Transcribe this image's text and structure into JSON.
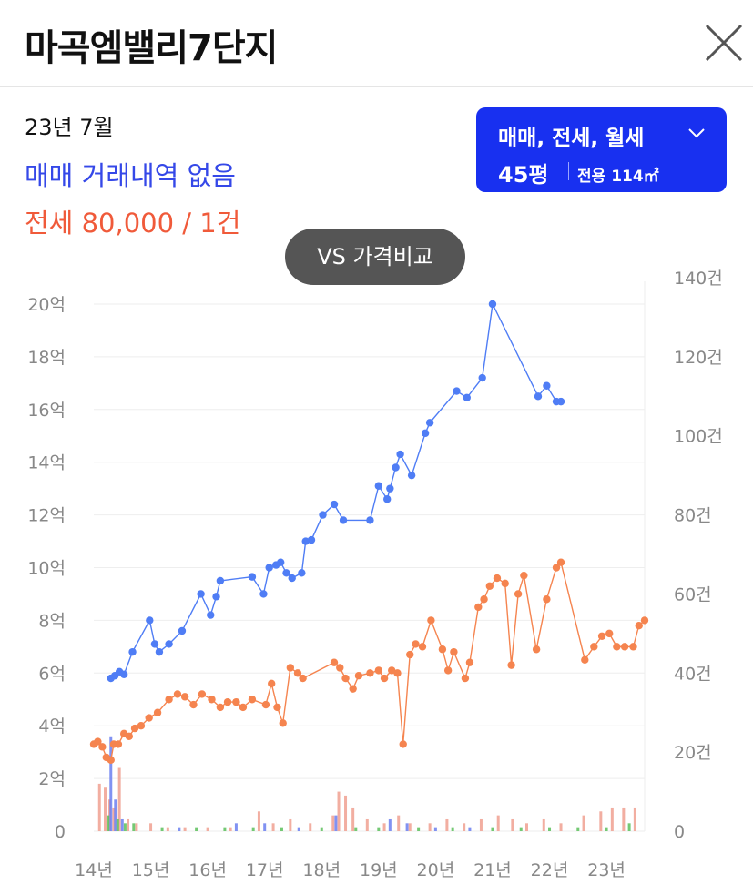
{
  "header": {
    "title": "마곡엠밸리7단지"
  },
  "info": {
    "date": "23년 7월",
    "sale_status": "매매 거래내역 없음",
    "jeonse_status": "전세 80,000 / 1건"
  },
  "filter": {
    "trade_types": "매매, 전세, 월세",
    "size": "45평",
    "area": "전용 114㎡"
  },
  "compare_button": "VS 가격비교",
  "colors": {
    "sale": "#4f7df5",
    "jeonse": "#f5844f",
    "accent": "#1830f0",
    "volume_green": "#5cc05c"
  },
  "chart_data": {
    "type": "line",
    "x_ticks": [
      "14년",
      "15년",
      "16년",
      "17년",
      "18년",
      "19년",
      "20년",
      "21년",
      "22년",
      "23년"
    ],
    "y_left_ticks": [
      "0",
      "2억",
      "4억",
      "6억",
      "8억",
      "10억",
      "12억",
      "14억",
      "16억",
      "18억",
      "20억"
    ],
    "y_right_ticks": [
      "0",
      "20건",
      "40건",
      "60건",
      "80건",
      "100건",
      "120건",
      "140건"
    ],
    "ylim_left": [
      0,
      20
    ],
    "ylim_right": [
      0,
      140
    ],
    "xlim": [
      2014.0,
      2023.67
    ],
    "grid": true,
    "series": [
      {
        "color": "#4f7df5",
        "points": [
          [
            2014.3,
            5.8
          ],
          [
            2014.37,
            5.9
          ],
          [
            2014.45,
            6.05
          ],
          [
            2014.53,
            5.95
          ],
          [
            2014.68,
            6.8
          ],
          [
            2014.98,
            8.0
          ],
          [
            2015.07,
            7.1
          ],
          [
            2015.15,
            6.8
          ],
          [
            2015.32,
            7.1
          ],
          [
            2015.55,
            7.6
          ],
          [
            2015.88,
            9.0
          ],
          [
            2016.05,
            8.2
          ],
          [
            2016.15,
            8.9
          ],
          [
            2016.22,
            9.5
          ],
          [
            2016.78,
            9.65
          ],
          [
            2016.98,
            9.0
          ],
          [
            2017.08,
            10.0
          ],
          [
            2017.2,
            10.1
          ],
          [
            2017.28,
            10.2
          ],
          [
            2017.38,
            9.8
          ],
          [
            2017.48,
            9.6
          ],
          [
            2017.65,
            9.8
          ],
          [
            2017.72,
            11.0
          ],
          [
            2017.82,
            11.05
          ],
          [
            2018.02,
            12.0
          ],
          [
            2018.22,
            12.4
          ],
          [
            2018.38,
            11.8
          ],
          [
            2018.85,
            11.8
          ],
          [
            2019.0,
            13.1
          ],
          [
            2019.15,
            12.6
          ],
          [
            2019.2,
            13.0
          ],
          [
            2019.3,
            13.8
          ],
          [
            2019.38,
            14.3
          ],
          [
            2019.58,
            13.5
          ],
          [
            2019.82,
            15.1
          ],
          [
            2019.9,
            15.5
          ],
          [
            2020.37,
            16.7
          ],
          [
            2020.55,
            16.45
          ],
          [
            2020.82,
            17.2
          ],
          [
            2021.0,
            20.0
          ],
          [
            2021.8,
            16.5
          ],
          [
            2021.95,
            16.9
          ],
          [
            2022.12,
            16.3
          ],
          [
            2022.2,
            16.3
          ]
        ]
      },
      {
        "color": "#f5844f",
        "points": [
          [
            2014.0,
            3.3
          ],
          [
            2014.07,
            3.4
          ],
          [
            2014.15,
            3.2
          ],
          [
            2014.22,
            2.8
          ],
          [
            2014.3,
            2.7
          ],
          [
            2014.35,
            3.3
          ],
          [
            2014.43,
            3.3
          ],
          [
            2014.53,
            3.7
          ],
          [
            2014.62,
            3.6
          ],
          [
            2014.72,
            3.9
          ],
          [
            2014.83,
            4.0
          ],
          [
            2014.97,
            4.3
          ],
          [
            2015.12,
            4.5
          ],
          [
            2015.32,
            5.0
          ],
          [
            2015.47,
            5.2
          ],
          [
            2015.6,
            5.1
          ],
          [
            2015.75,
            4.8
          ],
          [
            2015.9,
            5.2
          ],
          [
            2016.07,
            5.0
          ],
          [
            2016.22,
            4.7
          ],
          [
            2016.35,
            4.9
          ],
          [
            2016.5,
            4.9
          ],
          [
            2016.62,
            4.7
          ],
          [
            2016.78,
            5.0
          ],
          [
            2017.02,
            4.8
          ],
          [
            2017.12,
            5.6
          ],
          [
            2017.22,
            4.7
          ],
          [
            2017.32,
            4.1
          ],
          [
            2017.45,
            6.2
          ],
          [
            2017.58,
            6.0
          ],
          [
            2017.67,
            5.8
          ],
          [
            2018.22,
            6.4
          ],
          [
            2018.32,
            6.2
          ],
          [
            2018.42,
            5.8
          ],
          [
            2018.55,
            5.4
          ],
          [
            2018.65,
            5.9
          ],
          [
            2018.85,
            6.0
          ],
          [
            2019.0,
            6.1
          ],
          [
            2019.1,
            5.8
          ],
          [
            2019.23,
            6.1
          ],
          [
            2019.33,
            6.0
          ],
          [
            2019.43,
            3.3
          ],
          [
            2019.55,
            6.7
          ],
          [
            2019.65,
            7.1
          ],
          [
            2019.77,
            7.0
          ],
          [
            2019.92,
            8.0
          ],
          [
            2020.12,
            6.9
          ],
          [
            2020.22,
            6.1
          ],
          [
            2020.32,
            6.8
          ],
          [
            2020.52,
            5.8
          ],
          [
            2020.6,
            6.4
          ],
          [
            2020.75,
            8.5
          ],
          [
            2020.85,
            8.8
          ],
          [
            2020.95,
            9.3
          ],
          [
            2021.08,
            9.6
          ],
          [
            2021.22,
            9.4
          ],
          [
            2021.33,
            6.3
          ],
          [
            2021.45,
            9.0
          ],
          [
            2021.55,
            9.7
          ],
          [
            2021.77,
            6.9
          ],
          [
            2021.95,
            8.8
          ],
          [
            2022.12,
            10.0
          ],
          [
            2022.2,
            10.2
          ],
          [
            2022.62,
            6.5
          ],
          [
            2022.78,
            7.0
          ],
          [
            2022.92,
            7.4
          ],
          [
            2023.05,
            7.5
          ],
          [
            2023.18,
            7.0
          ],
          [
            2023.32,
            7.0
          ],
          [
            2023.47,
            7.0
          ],
          [
            2023.57,
            7.8
          ],
          [
            2023.67,
            8.0
          ]
        ]
      }
    ],
    "volume_bars": [
      {
        "color": "#f0a090",
        "points": [
          [
            2014.1,
            12
          ],
          [
            2014.2,
            11
          ],
          [
            2014.28,
            8
          ],
          [
            2014.35,
            6
          ],
          [
            2014.45,
            16
          ],
          [
            2014.6,
            3
          ],
          [
            2014.75,
            2
          ],
          [
            2015.0,
            2
          ],
          [
            2015.3,
            1
          ],
          [
            2015.6,
            1
          ],
          [
            2016.0,
            1
          ],
          [
            2016.4,
            1
          ],
          [
            2016.9,
            5
          ],
          [
            2017.15,
            2
          ],
          [
            2017.45,
            3
          ],
          [
            2017.8,
            2
          ],
          [
            2018.2,
            4
          ],
          [
            2018.3,
            10
          ],
          [
            2018.42,
            9
          ],
          [
            2018.55,
            6
          ],
          [
            2018.8,
            3
          ],
          [
            2019.1,
            2
          ],
          [
            2019.35,
            4
          ],
          [
            2019.55,
            2
          ],
          [
            2019.9,
            2
          ],
          [
            2020.2,
            3
          ],
          [
            2020.5,
            2
          ],
          [
            2020.8,
            3
          ],
          [
            2021.1,
            4
          ],
          [
            2021.35,
            3
          ],
          [
            2021.6,
            2
          ],
          [
            2021.9,
            3
          ],
          [
            2022.2,
            2
          ],
          [
            2022.6,
            4
          ],
          [
            2022.9,
            5
          ],
          [
            2023.1,
            6
          ],
          [
            2023.3,
            6
          ],
          [
            2023.5,
            6
          ]
        ]
      },
      {
        "color": "#6b7ff0",
        "points": [
          [
            2014.3,
            24
          ],
          [
            2014.38,
            8
          ],
          [
            2014.5,
            3
          ],
          [
            2015.5,
            1
          ],
          [
            2016.5,
            2
          ],
          [
            2017.0,
            2
          ],
          [
            2017.6,
            1
          ],
          [
            2018.25,
            4
          ],
          [
            2019.2,
            3
          ],
          [
            2019.5,
            2
          ],
          [
            2020.0,
            1
          ],
          [
            2020.6,
            1
          ]
        ]
      },
      {
        "color": "#5cc05c",
        "points": [
          [
            2014.25,
            4
          ],
          [
            2014.42,
            3
          ],
          [
            2014.55,
            2
          ],
          [
            2014.7,
            2
          ],
          [
            2015.2,
            1
          ],
          [
            2015.8,
            1
          ],
          [
            2016.3,
            1
          ],
          [
            2016.8,
            1
          ],
          [
            2017.3,
            1
          ],
          [
            2018.0,
            1
          ],
          [
            2018.6,
            1
          ],
          [
            2019.0,
            1
          ],
          [
            2019.7,
            1
          ],
          [
            2020.3,
            1
          ],
          [
            2021.0,
            1
          ],
          [
            2021.5,
            1
          ],
          [
            2022.0,
            1
          ],
          [
            2022.5,
            1
          ],
          [
            2023.0,
            1
          ],
          [
            2023.4,
            2
          ]
        ]
      }
    ]
  }
}
